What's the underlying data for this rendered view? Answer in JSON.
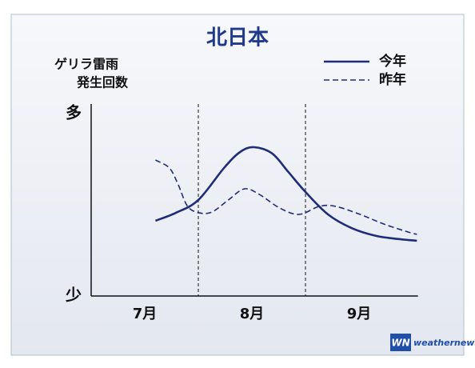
{
  "chart_data": {
    "type": "line",
    "title": "北日本",
    "y_label": [
      "ゲリラ雷雨",
      "発生回数"
    ],
    "series": [
      {
        "name": "今年",
        "color": "#1f2d78",
        "dash": false,
        "x": [
          0.6,
          0.79,
          1.0,
          1.24,
          1.39,
          1.52,
          1.69,
          1.84,
          2.0,
          2.21,
          2.43,
          2.66,
          2.88,
          3.04
        ],
        "values": [
          39.2,
          43.3,
          50,
          66.7,
          75,
          77.5,
          74.2,
          64.6,
          54.2,
          42.5,
          35.4,
          31.3,
          29.6,
          28.8
        ]
      },
      {
        "name": "昨年",
        "color": "#1f2d78",
        "dash": true,
        "x": [
          0.6,
          0.73,
          0.81,
          0.9,
          1.01,
          1.13,
          1.28,
          1.43,
          1.57,
          1.76,
          1.94,
          2.13,
          2.28,
          2.51,
          2.73,
          2.96,
          3.04
        ],
        "values": [
          70.8,
          66.7,
          58.3,
          46.7,
          43.3,
          43.8,
          50,
          55.8,
          52.9,
          45.8,
          42.5,
          46.7,
          46.7,
          42.5,
          37.5,
          33.3,
          32.1
        ]
      }
    ],
    "xlim": [
      0,
      3.05
    ],
    "ylim": [
      0,
      100
    ],
    "xticks": [
      {
        "value": 0.5,
        "label": "7月"
      },
      {
        "value": 1.5,
        "label": "8月"
      },
      {
        "value": 2.5,
        "label": "9月"
      }
    ],
    "yticks": [
      {
        "value": 95,
        "label": "多"
      },
      {
        "value": 0,
        "label": "少"
      }
    ],
    "vlines": [
      1,
      2
    ]
  },
  "logo": {
    "mark": "WN",
    "text": "weathernews"
  }
}
